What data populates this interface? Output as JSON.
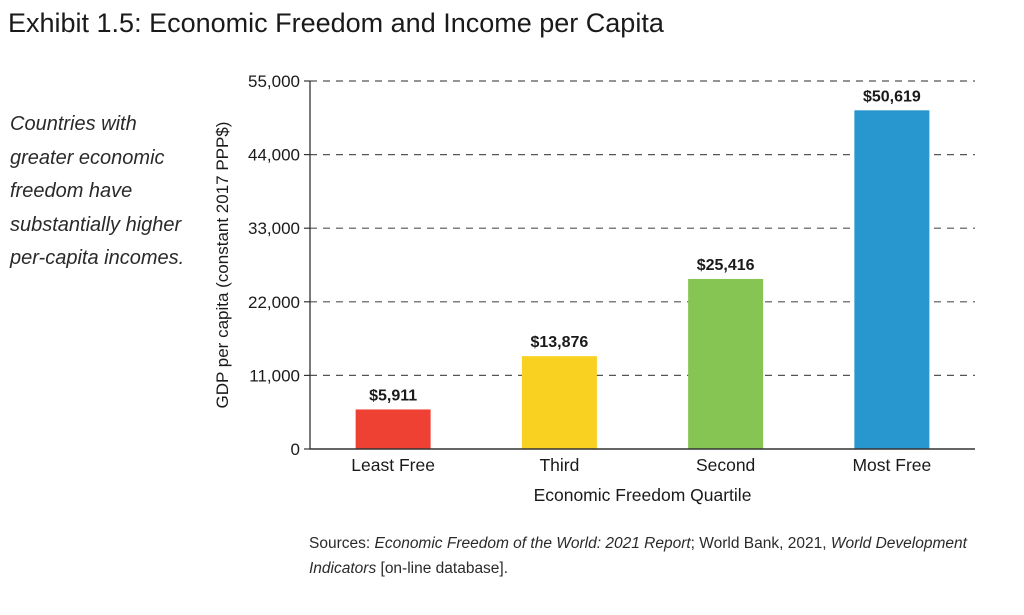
{
  "title": "Exhibit 1.5: Economic Freedom and Income per Capita",
  "caption": "Countries with greater economic freedom have substantially higher per-capita incomes.",
  "sources": {
    "prefix": "Sources: ",
    "report": "Economic Freedom of the World: 2021 Report",
    "middle": "; World Bank, 2021, ",
    "wdi": "World Development Indicators",
    "suffix": " [on-line database]."
  },
  "chart_data": {
    "type": "bar",
    "categories": [
      "Least Free",
      "Third",
      "Second",
      "Most Free"
    ],
    "values": [
      5911,
      13876,
      25416,
      50619
    ],
    "data_labels": [
      "$5,911",
      "$13,876",
      "$25,416",
      "$50,619"
    ],
    "colors": [
      "#ef4133",
      "#f9d120",
      "#86c553",
      "#2896cf"
    ],
    "xlabel": "Economic Freedom Quartile",
    "ylabel": "GDP per capita (constant 2017 PPP$)",
    "ylim": [
      0,
      55000
    ],
    "yticks": [
      0,
      11000,
      22000,
      33000,
      44000,
      55000
    ],
    "ytick_labels": [
      "0",
      "11,000",
      "22,000",
      "33,000",
      "44,000",
      "55,000"
    ],
    "grid": "dashed horizontal"
  }
}
